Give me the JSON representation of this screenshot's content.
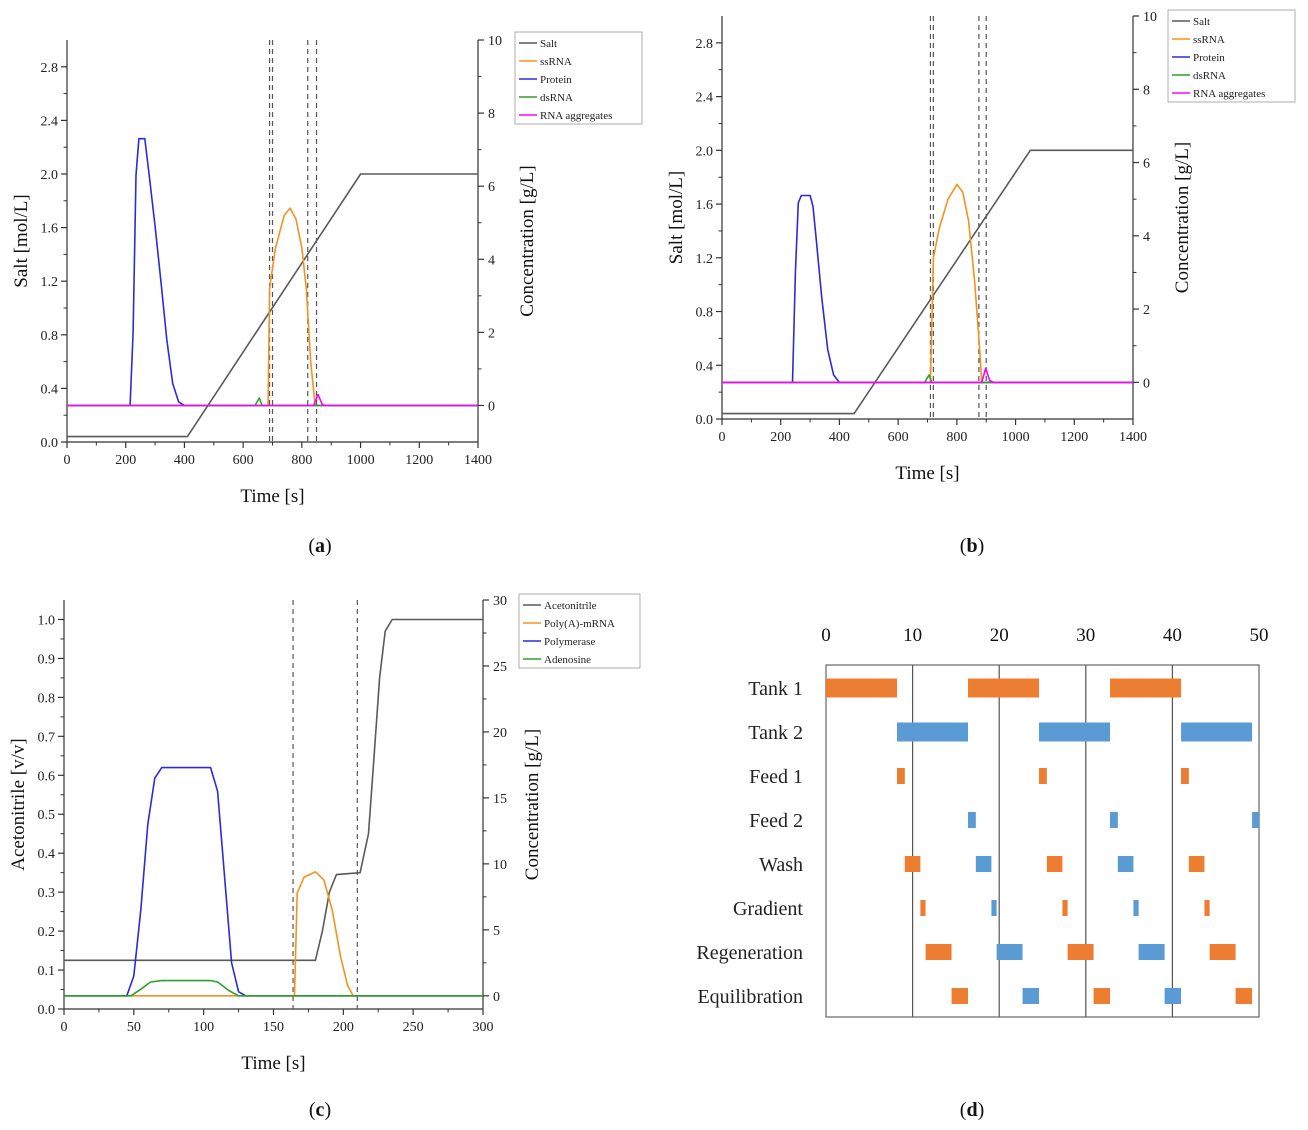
{
  "chart_data": [
    {
      "id": "a",
      "type": "line",
      "caption_letter": "a",
      "xlabel": "Time [s]",
      "ylabel_left": "Salt [mol/L]",
      "ylabel_right": "Concentration [g/L]",
      "xlim": [
        0,
        1400
      ],
      "ylim_left": [
        0,
        3.0
      ],
      "ylim_right": [
        -1,
        10
      ],
      "xticks": [
        0,
        200,
        400,
        600,
        800,
        1000,
        1200,
        1400
      ],
      "yticks_left": [
        0.0,
        0.4,
        0.8,
        1.2,
        1.6,
        2.0,
        2.4,
        2.8
      ],
      "yticks_right": [
        0,
        2,
        4,
        6,
        8,
        10
      ],
      "yticks_left_labels": [
        "0.0",
        "0.4",
        "0.8",
        "1.2",
        "1.6",
        "2.0",
        "2.4",
        "2.8"
      ],
      "vlines": [
        690,
        700,
        820,
        850
      ],
      "series": [
        {
          "name": "Salt",
          "color": "#5a5a5a",
          "axis": "left",
          "points": [
            [
              0,
              0.04
            ],
            [
              410,
              0.04
            ],
            [
              1000,
              2.0
            ],
            [
              1400,
              2.0
            ]
          ]
        },
        {
          "name": "ssRNA",
          "color": "#f5921e",
          "axis": "right",
          "points": [
            [
              0,
              0
            ],
            [
              685,
              0
            ],
            [
              690,
              3.2
            ],
            [
              710,
              4.3
            ],
            [
              740,
              5.2
            ],
            [
              760,
              5.4
            ],
            [
              780,
              5.1
            ],
            [
              800,
              4.3
            ],
            [
              815,
              3.2
            ],
            [
              830,
              1.2
            ],
            [
              845,
              0
            ],
            [
              1400,
              0
            ]
          ]
        },
        {
          "name": "Protein",
          "color": "#2b2bd8",
          "axis": "right",
          "points": [
            [
              0,
              0
            ],
            [
              215,
              0
            ],
            [
              225,
              2.0
            ],
            [
              235,
              6.3
            ],
            [
              245,
              7.3
            ],
            [
              265,
              7.3
            ],
            [
              280,
              6.3
            ],
            [
              300,
              4.9
            ],
            [
              320,
              3.4
            ],
            [
              340,
              1.8
            ],
            [
              360,
              0.6
            ],
            [
              380,
              0.1
            ],
            [
              400,
              0
            ],
            [
              1400,
              0
            ]
          ]
        },
        {
          "name": "dsRNA",
          "color": "#2ca02c",
          "axis": "right",
          "points": [
            [
              0,
              0
            ],
            [
              640,
              0
            ],
            [
              655,
              0.2
            ],
            [
              665,
              0.0
            ],
            [
              1400,
              0
            ]
          ]
        },
        {
          "name": "RNA aggregates",
          "color": "#ff00ff",
          "axis": "right",
          "points": [
            [
              0,
              0
            ],
            [
              840,
              0
            ],
            [
              855,
              0.3
            ],
            [
              870,
              0.02
            ],
            [
              880,
              0
            ],
            [
              1400,
              0
            ]
          ]
        }
      ]
    },
    {
      "id": "b",
      "type": "line",
      "caption_letter": "b",
      "xlabel": "Time [s]",
      "ylabel_left": "Salt [mol/L]",
      "ylabel_right": "Concentration [g/L]",
      "xlim": [
        0,
        1400
      ],
      "ylim_left": [
        0,
        3.0
      ],
      "ylim_right": [
        -1,
        10
      ],
      "xticks": [
        0,
        200,
        400,
        600,
        800,
        1000,
        1200,
        1400
      ],
      "yticks_left": [
        0.0,
        0.4,
        0.8,
        1.2,
        1.6,
        2.0,
        2.4,
        2.8
      ],
      "yticks_right": [
        0,
        2,
        4,
        6,
        8,
        10
      ],
      "yticks_left_labels": [
        "0.0",
        "0.4",
        "0.8",
        "1.2",
        "1.6",
        "2.0",
        "2.4",
        "2.8"
      ],
      "vlines": [
        710,
        720,
        875,
        900
      ],
      "series": [
        {
          "name": "Salt",
          "color": "#5a5a5a",
          "axis": "left",
          "points": [
            [
              0,
              0.04
            ],
            [
              450,
              0.04
            ],
            [
              1050,
              2.0
            ],
            [
              1400,
              2.0
            ]
          ]
        },
        {
          "name": "ssRNA",
          "color": "#f5921e",
          "axis": "right",
          "points": [
            [
              0,
              0
            ],
            [
              710,
              0
            ],
            [
              720,
              3.4
            ],
            [
              740,
              4.2
            ],
            [
              770,
              5.0
            ],
            [
              800,
              5.4
            ],
            [
              820,
              5.2
            ],
            [
              840,
              4.4
            ],
            [
              860,
              2.8
            ],
            [
              875,
              1.2
            ],
            [
              885,
              0
            ],
            [
              1400,
              0
            ]
          ]
        },
        {
          "name": "Protein",
          "color": "#2b2bd8",
          "axis": "right",
          "points": [
            [
              0,
              0
            ],
            [
              240,
              0
            ],
            [
              250,
              3.0
            ],
            [
              260,
              4.9
            ],
            [
              270,
              5.1
            ],
            [
              300,
              5.1
            ],
            [
              310,
              4.8
            ],
            [
              320,
              4.0
            ],
            [
              340,
              2.3
            ],
            [
              360,
              0.9
            ],
            [
              380,
              0.2
            ],
            [
              400,
              0
            ],
            [
              1400,
              0
            ]
          ]
        },
        {
          "name": "dsRNA",
          "color": "#2ca02c",
          "axis": "right",
          "points": [
            [
              0,
              0
            ],
            [
              690,
              0
            ],
            [
              705,
              0.2
            ],
            [
              715,
              0.0
            ],
            [
              1400,
              0
            ]
          ]
        },
        {
          "name": "RNA aggregates",
          "color": "#ff00ff",
          "axis": "right",
          "points": [
            [
              0,
              0
            ],
            [
              885,
              0
            ],
            [
              898,
              0.38
            ],
            [
              912,
              0.05
            ],
            [
              925,
              0
            ],
            [
              1400,
              0
            ]
          ]
        }
      ]
    },
    {
      "id": "c",
      "type": "line",
      "caption_letter": "c",
      "xlabel": "Time [s]",
      "ylabel_left": "Acetonitrile [v/v]",
      "ylabel_right": "Concentration [g/L]",
      "xlim": [
        0,
        300
      ],
      "ylim_left": [
        0,
        1.05
      ],
      "ylim_right": [
        -1,
        30
      ],
      "xticks": [
        0,
        50,
        100,
        150,
        200,
        250,
        300
      ],
      "yticks_left": [
        0.0,
        0.1,
        0.2,
        0.3,
        0.4,
        0.5,
        0.6,
        0.7,
        0.8,
        0.9,
        1.0
      ],
      "yticks_right": [
        0,
        5,
        10,
        15,
        20,
        25,
        30
      ],
      "yticks_left_labels": [
        "0.0",
        "0.1",
        "0.2",
        "0.3",
        "0.4",
        "0.5",
        "0.6",
        "0.7",
        "0.8",
        "0.9",
        "1.0"
      ],
      "vlines": [
        164,
        210
      ],
      "series": [
        {
          "name": "Acetonitrile",
          "color": "#5a5a5a",
          "axis": "left",
          "points": [
            [
              0,
              0.125
            ],
            [
              180,
              0.125
            ],
            [
              185,
              0.2
            ],
            [
              190,
              0.3
            ],
            [
              195,
              0.345
            ],
            [
              212,
              0.35
            ],
            [
              218,
              0.45
            ],
            [
              222,
              0.65
            ],
            [
              226,
              0.85
            ],
            [
              230,
              0.97
            ],
            [
              235,
              1.0
            ],
            [
              300,
              1.0
            ]
          ]
        },
        {
          "name": "Poly(A)-mRNA",
          "color": "#f5921e",
          "axis": "right",
          "points": [
            [
              0,
              0
            ],
            [
              165,
              0
            ],
            [
              167,
              7.8
            ],
            [
              172,
              9.0
            ],
            [
              180,
              9.4
            ],
            [
              186,
              8.8
            ],
            [
              192,
              6.5
            ],
            [
              198,
              3.0
            ],
            [
              203,
              0.8
            ],
            [
              207,
              0
            ],
            [
              300,
              0
            ]
          ]
        },
        {
          "name": "Polymerase",
          "color": "#2b2bd8",
          "axis": "right",
          "points": [
            [
              0,
              0
            ],
            [
              45,
              0
            ],
            [
              50,
              1.5
            ],
            [
              55,
              6.5
            ],
            [
              60,
              13.0
            ],
            [
              65,
              16.5
            ],
            [
              70,
              17.3
            ],
            [
              105,
              17.3
            ],
            [
              110,
              15.5
            ],
            [
              115,
              9.0
            ],
            [
              120,
              2.5
            ],
            [
              125,
              0.3
            ],
            [
              130,
              0
            ],
            [
              300,
              0
            ]
          ]
        },
        {
          "name": "Adenosine",
          "color": "#2ca02c",
          "axis": "right",
          "points": [
            [
              0,
              0
            ],
            [
              48,
              0
            ],
            [
              55,
              0.5
            ],
            [
              62,
              1.05
            ],
            [
              70,
              1.15
            ],
            [
              105,
              1.15
            ],
            [
              110,
              1.05
            ],
            [
              118,
              0.4
            ],
            [
              125,
              0
            ],
            [
              300,
              0
            ]
          ]
        }
      ]
    },
    {
      "id": "d",
      "type": "gantt",
      "caption_letter": "d",
      "xlim": [
        0,
        50
      ],
      "xticks": [
        0,
        10,
        20,
        30,
        40,
        50
      ],
      "gridlines": [
        10,
        20,
        30,
        40
      ],
      "colors": {
        "orange": "#ed7d31",
        "blue": "#5b9bd5"
      },
      "rows": [
        {
          "label": "Tank 1",
          "bars": [
            {
              "start": 0,
              "end": 8.2,
              "color": "orange"
            },
            {
              "start": 16.4,
              "end": 24.6,
              "color": "orange"
            },
            {
              "start": 32.8,
              "end": 41.0,
              "color": "orange"
            }
          ]
        },
        {
          "label": "Tank 2",
          "bars": [
            {
              "start": 8.2,
              "end": 16.4,
              "color": "blue"
            },
            {
              "start": 24.6,
              "end": 32.8,
              "color": "blue"
            },
            {
              "start": 41.0,
              "end": 49.2,
              "color": "blue"
            }
          ]
        },
        {
          "label": "Feed 1",
          "bars": [
            {
              "start": 8.2,
              "end": 9.1,
              "color": "orange"
            },
            {
              "start": 24.6,
              "end": 25.5,
              "color": "orange"
            },
            {
              "start": 41.0,
              "end": 41.9,
              "color": "orange"
            }
          ]
        },
        {
          "label": "Feed 2",
          "bars": [
            {
              "start": 16.4,
              "end": 17.3,
              "color": "blue"
            },
            {
              "start": 32.8,
              "end": 33.7,
              "color": "blue"
            },
            {
              "start": 49.2,
              "end": 50.0,
              "color": "blue"
            }
          ]
        },
        {
          "label": "Wash",
          "bars": [
            {
              "start": 9.1,
              "end": 10.9,
              "color": "orange"
            },
            {
              "start": 17.3,
              "end": 19.1,
              "color": "blue"
            },
            {
              "start": 25.5,
              "end": 27.3,
              "color": "orange"
            },
            {
              "start": 33.7,
              "end": 35.5,
              "color": "blue"
            },
            {
              "start": 41.9,
              "end": 43.7,
              "color": "orange"
            }
          ]
        },
        {
          "label": "Gradient",
          "bars": [
            {
              "start": 10.9,
              "end": 11.5,
              "color": "orange"
            },
            {
              "start": 19.1,
              "end": 19.7,
              "color": "blue"
            },
            {
              "start": 27.3,
              "end": 27.9,
              "color": "orange"
            },
            {
              "start": 35.5,
              "end": 36.1,
              "color": "blue"
            },
            {
              "start": 43.7,
              "end": 44.3,
              "color": "orange"
            }
          ]
        },
        {
          "label": "Regeneration",
          "bars": [
            {
              "start": 11.5,
              "end": 14.5,
              "color": "orange"
            },
            {
              "start": 19.7,
              "end": 22.7,
              "color": "blue"
            },
            {
              "start": 27.9,
              "end": 30.9,
              "color": "orange"
            },
            {
              "start": 36.1,
              "end": 39.1,
              "color": "blue"
            },
            {
              "start": 44.3,
              "end": 47.3,
              "color": "orange"
            }
          ]
        },
        {
          "label": "Equilibration",
          "bars": [
            {
              "start": 14.5,
              "end": 16.4,
              "color": "orange"
            },
            {
              "start": 22.7,
              "end": 24.6,
              "color": "blue"
            },
            {
              "start": 30.9,
              "end": 32.8,
              "color": "orange"
            },
            {
              "start": 39.1,
              "end": 41.0,
              "color": "blue"
            },
            {
              "start": 47.3,
              "end": 49.2,
              "color": "orange"
            }
          ]
        }
      ]
    }
  ]
}
